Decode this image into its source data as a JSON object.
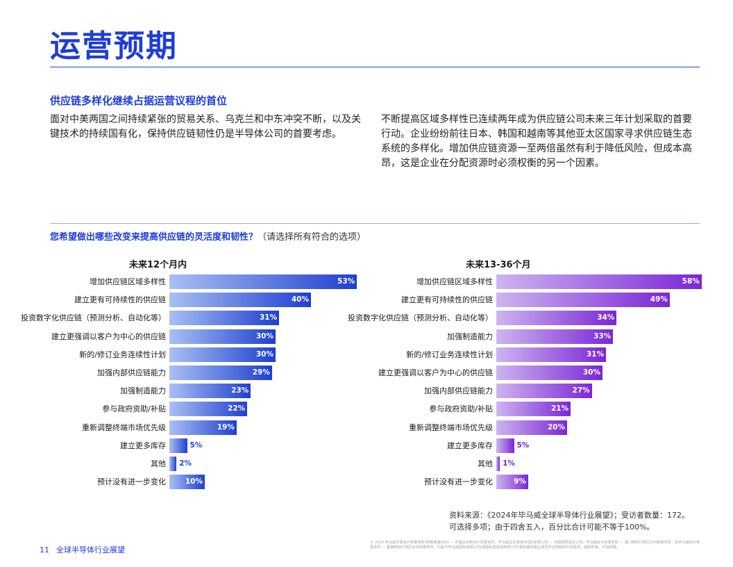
{
  "page_title": "运营预期",
  "section_heading": "供应链多样化继续占据运营议程的首位",
  "paragraph_left": "面对中美两国之间持续紧张的贸易关系、乌克兰和中东冲突不断，以及关键技术的持续国有化，保持供应链韧性仍是半导体公司的首要考虑。",
  "paragraph_right": "不断提高区域多样性已连续两年成为供应链公司未来三年计划采取的首要行动。企业纷纷前往日本、韩国和越南等其他亚太区国家寻求供应链生态系统的多样化。增加供应链资源一至两倍虽然有利于降低风险，但成本高昂，这是企业在分配资源时必须权衡的另一个因素。",
  "survey_question": "您希望做出哪些改变来提高供应链的灵活度和韧性？",
  "survey_note": "（请选择所有符合的选项）",
  "colors": {
    "title_blue": "#1f3dd6",
    "left_bar_start": "#a9c0f3",
    "left_bar_end": "#1f3fd0",
    "left_value_out": "#2447d8",
    "right_bar_start": "#cdb5f0",
    "right_bar_end": "#7b26d6",
    "right_value_out": "#7b26d6"
  },
  "chart_data": [
    {
      "type": "bar",
      "orientation": "horizontal",
      "title": "未来12个月内",
      "unit": "%",
      "categories": [
        "增加供应链区域多样性",
        "建立更有可持续性的供应链",
        "投资数字化供应链（预测分析、自动化等）",
        "建立更强调以客户为中心的供应链",
        "新的/修订业务连续性计划",
        "加强内部供应链能力",
        "加强制造能力",
        "参与政府资助/补贴",
        "重新调整终端市场优先级",
        "建立更多库存",
        "其他",
        "预计没有进一步变化"
      ],
      "values": [
        53,
        40,
        31,
        30,
        30,
        29,
        23,
        22,
        19,
        5,
        2,
        10
      ],
      "value_labels": [
        "53%",
        "40%",
        "31%",
        "30%",
        "30%",
        "29%",
        "23%",
        "22%",
        "19%",
        "5%",
        "2%",
        "10%"
      ]
    },
    {
      "type": "bar",
      "orientation": "horizontal",
      "title": "未来13-36个月",
      "unit": "%",
      "categories": [
        "增加供应链区域多样性",
        "建立更有可持续性的供应链",
        "投资数字化供应链（预测分析、自动化等）",
        "加强制造能力",
        "新的/修订业务连续性计划",
        "建立更强调以客户为中心的供应链",
        "加强内部供应链能力",
        "参与政府资助/补贴",
        "重新调整终端市场优先级",
        "建立更多库存",
        "其他",
        "预计没有进一步变化"
      ],
      "values": [
        58,
        49,
        34,
        33,
        31,
        30,
        27,
        21,
        20,
        5,
        1,
        9
      ],
      "value_labels": [
        "58%",
        "49%",
        "34%",
        "33%",
        "31%",
        "30%",
        "27%",
        "21%",
        "20%",
        "5%",
        "1%",
        "9%"
      ]
    }
  ],
  "source_line1": "资料来源：《2024年毕马威全球半导体行业展望》；受访者数量：172。",
  "source_line2": "可选择多项；由于四舍五入，百分比合计可能不等于100%。",
  "footer_page_number": "11",
  "footer_title": "全球半导体行业展望",
  "footer_legal": "© 2024 毕马威华振会计师事务所(特殊普通合伙) — 中国合伙制会计师事务所，毕马威企业咨询(中国)有限公司 — 中国有限责任公司，毕马威会计师事务所 — 澳门特别行政区合伙制事务所，及毕马威会计师事务所 — 香港特别行政区合伙制事务所，均是与毕马威国际有限公司(英国私营担保有限公司)相关联的独立成员所全球组织中的成员。版权所有，不得转载。"
}
